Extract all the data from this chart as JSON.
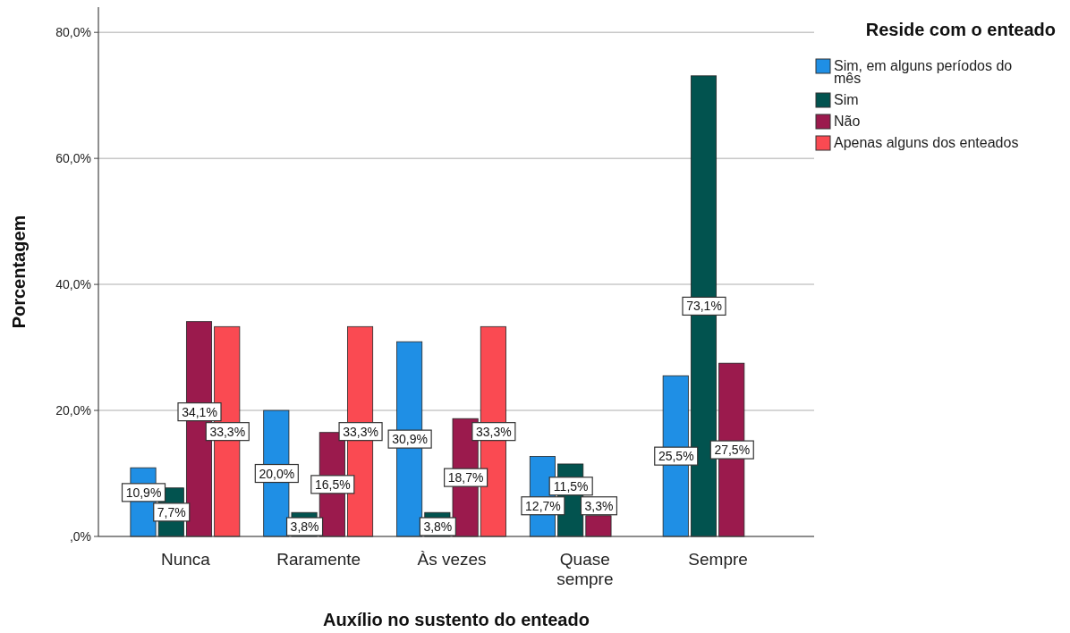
{
  "chart_data": {
    "type": "bar",
    "xlabel": "Auxílio no sustento do enteado",
    "ylabel": "Porcentagem",
    "legend_title": "Reside com o enteado",
    "categories": [
      "Nunca",
      "Raramente",
      "Às vezes",
      "Quase sempre",
      "Sempre"
    ],
    "series": [
      {
        "name": "Sim, em alguns períodos do mês",
        "color": "#1f8fe5",
        "values": [
          10.9,
          20.0,
          30.9,
          12.7,
          25.5
        ],
        "value_labels": [
          "10,9%",
          "20,0%",
          "30,9%",
          "12,7%",
          "25,5%"
        ]
      },
      {
        "name": "Sim",
        "color": "#02534f",
        "values": [
          7.7,
          3.8,
          3.8,
          11.5,
          73.1
        ],
        "value_labels": [
          "7,7%",
          "3,8%",
          "3,8%",
          "11,5%",
          "73,1%"
        ]
      },
      {
        "name": "Não",
        "color": "#9b1a4d",
        "values": [
          34.1,
          16.5,
          18.7,
          3.3,
          27.5
        ],
        "value_labels": [
          "34,1%",
          "16,5%",
          "18,7%",
          "3,3%",
          "27,5%"
        ]
      },
      {
        "name": "Apenas alguns dos enteados",
        "color": "#fa4a52",
        "values": [
          33.3,
          33.3,
          33.3,
          0,
          0
        ],
        "value_labels": [
          "33,3%",
          "33,3%",
          "33,3%",
          null,
          null
        ]
      }
    ],
    "ylim": [
      0,
      84
    ],
    "yticks": [
      {
        "value": 0,
        "label": ",0%"
      },
      {
        "value": 20,
        "label": "20,0%"
      },
      {
        "value": 40,
        "label": "40,0%"
      },
      {
        "value": 60,
        "label": "60,0%"
      },
      {
        "value": 80,
        "label": "80,0%"
      }
    ],
    "grid": "y",
    "legend": "top right"
  }
}
